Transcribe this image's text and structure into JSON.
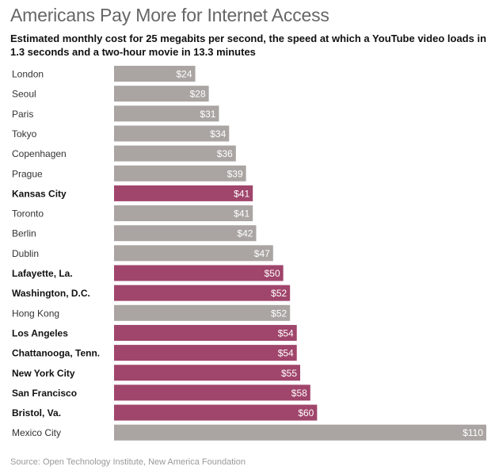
{
  "title": "Americans Pay More for Internet Access",
  "subtitle": "Estimated monthly cost for 25 megabits per second, the speed at which a YouTube video loads in 1.3 seconds and a two-hour movie in 13.3 minutes",
  "source": "Source: Open Technology Institute, New America Foundation",
  "colors": {
    "us": "#a0456b",
    "other": "#aaa5a2",
    "label": "#ffffff"
  },
  "chart_data": {
    "type": "bar",
    "orientation": "horizontal",
    "title": "Americans Pay More for Internet Access",
    "subtitle": "Estimated monthly cost for 25 megabits per second, the speed at which a YouTube video loads in 1.3 seconds and a two-hour movie in 13.3 minutes",
    "xlim": [
      0,
      110
    ],
    "grid": false,
    "categories": [
      "London",
      "Seoul",
      "Paris",
      "Tokyo",
      "Copenhagen",
      "Prague",
      "Kansas City",
      "Toronto",
      "Berlin",
      "Dublin",
      "Lafayette, La.",
      "Washington, D.C.",
      "Hong Kong",
      "Los Angeles",
      "Chattanooga, Tenn.",
      "New York City",
      "San Francisco",
      "Bristol, Va.",
      "Mexico City"
    ],
    "values": [
      24,
      28,
      31,
      34,
      36,
      39,
      41,
      41,
      42,
      47,
      50,
      52,
      52,
      54,
      54,
      55,
      58,
      60,
      110
    ],
    "value_labels": [
      "$24",
      "$28",
      "$31",
      "$34",
      "$36",
      "$39",
      "$41",
      "$41",
      "$42",
      "$47",
      "$50",
      "$52",
      "$52",
      "$54",
      "$54",
      "$55",
      "$58",
      "$60",
      "$110"
    ],
    "highlighted": [
      false,
      false,
      false,
      false,
      false,
      false,
      true,
      false,
      false,
      false,
      true,
      true,
      false,
      true,
      true,
      true,
      true,
      true,
      false
    ]
  }
}
